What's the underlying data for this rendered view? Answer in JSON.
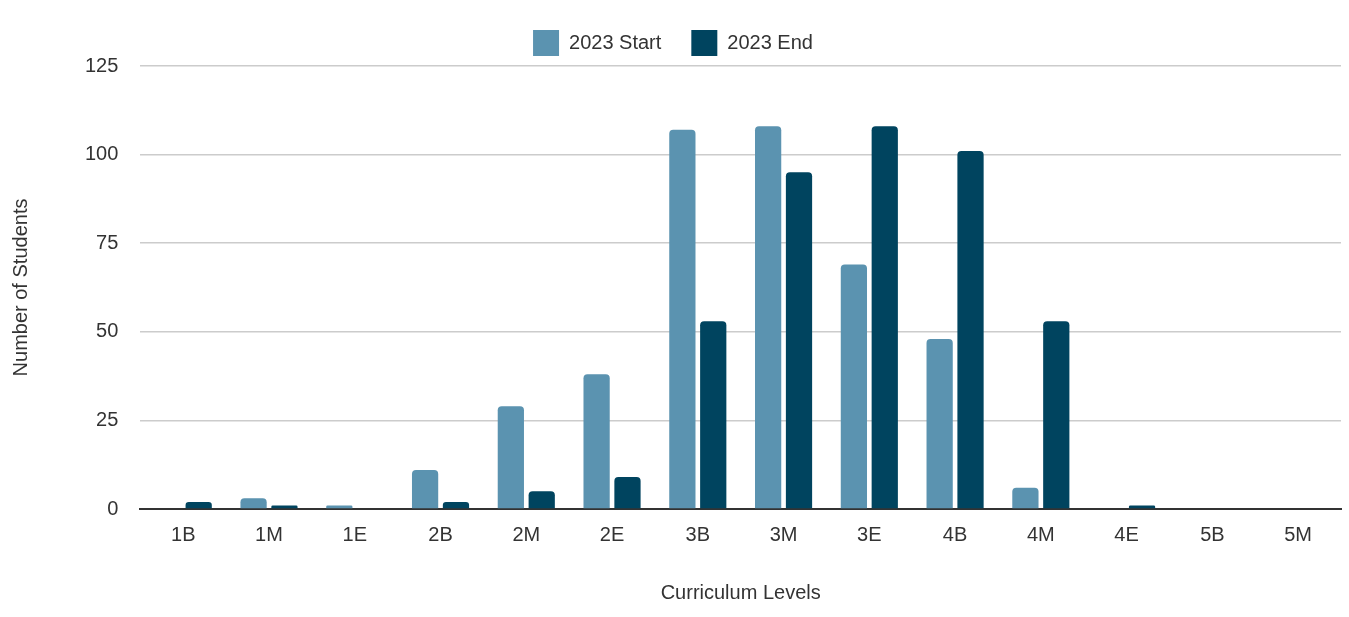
{
  "chart_data": {
    "type": "bar",
    "xlabel": "Curriculum Levels",
    "ylabel": "Number of Students",
    "categories": [
      "1B",
      "1M",
      "1E",
      "2B",
      "2M",
      "2E",
      "3B",
      "3M",
      "3E",
      "4B",
      "4M",
      "4E",
      "5B",
      "5M"
    ],
    "series": [
      {
        "name": "2023 Start",
        "color": "#5b93b0",
        "values": [
          0,
          3,
          1,
          11,
          29,
          38,
          107,
          108,
          69,
          48,
          6,
          0,
          0,
          0
        ]
      },
      {
        "name": "2023 End",
        "color": "#00445f",
        "values": [
          2,
          1,
          0,
          2,
          5,
          9,
          53,
          95,
          108,
          101,
          53,
          1,
          0,
          0
        ]
      }
    ],
    "ylim": [
      0,
      125
    ],
    "yticks": [
      0,
      25,
      50,
      75,
      100,
      125
    ],
    "grid": "y",
    "legend": "top"
  }
}
